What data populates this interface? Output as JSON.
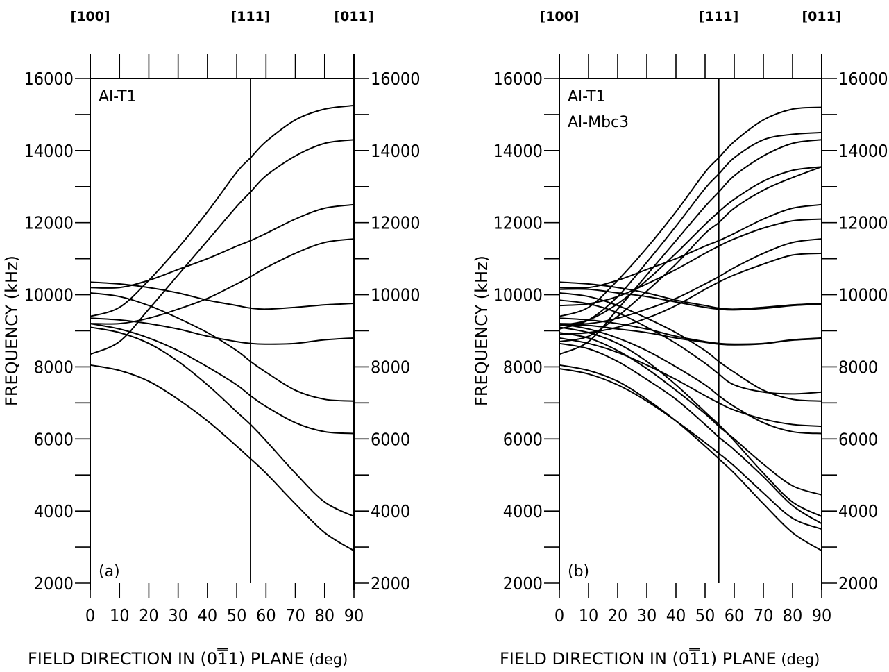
{
  "chart_data": [
    {
      "type": "line",
      "panel_label": "(a)",
      "annotation": [
        "Al-T1"
      ],
      "xlabel": "FIELD DIRECTION IN (0̅1 1) PLANE",
      "xlabel_parts": [
        "FIELD DIRECTION IN (0",
        "1",
        "1) PLANE"
      ],
      "xunit": "(deg)",
      "ylabel": "FREQUENCY (kHz)",
      "xlim": [
        0,
        90
      ],
      "ylim": [
        2000,
        16000
      ],
      "x_ticks": [
        0,
        10,
        20,
        30,
        40,
        50,
        60,
        70,
        80,
        90
      ],
      "y_ticks": [
        2000,
        4000,
        6000,
        8000,
        10000,
        12000,
        14000,
        16000
      ],
      "top_labels": [
        {
          "text": "[100]",
          "x": 0
        },
        {
          "text": "[111]",
          "x": 54.7
        },
        {
          "text": "[011]",
          "x": 90
        }
      ],
      "vline_x": 54.7,
      "x": [
        0,
        10,
        20,
        30,
        40,
        50,
        54.7,
        60,
        70,
        80,
        90
      ],
      "series": [
        {
          "values": [
            9400,
            9650,
            10400,
            11300,
            12300,
            13400,
            13800,
            14250,
            14850,
            15150,
            15250
          ]
        },
        {
          "values": [
            8350,
            8700,
            9600,
            10550,
            11500,
            12450,
            12850,
            13300,
            13850,
            14200,
            14300
          ]
        },
        {
          "values": [
            10200,
            10200,
            10400,
            10700,
            11000,
            11350,
            11500,
            11700,
            12100,
            12400,
            12500
          ]
        },
        {
          "values": [
            9200,
            9200,
            9350,
            9600,
            9900,
            10300,
            10500,
            10750,
            11150,
            11450,
            11550
          ]
        },
        {
          "values": [
            10350,
            10300,
            10200,
            10050,
            9850,
            9700,
            9630,
            9600,
            9650,
            9720,
            9760
          ]
        },
        {
          "values": [
            9350,
            9300,
            9200,
            9050,
            8850,
            8700,
            8650,
            8630,
            8650,
            8750,
            8800
          ]
        },
        {
          "values": [
            10050,
            9950,
            9700,
            9350,
            8950,
            8450,
            8150,
            7850,
            7350,
            7100,
            7050
          ]
        },
        {
          "values": [
            9200,
            9050,
            8800,
            8450,
            8000,
            7500,
            7200,
            6900,
            6450,
            6200,
            6150
          ]
        },
        {
          "values": [
            9100,
            8950,
            8650,
            8150,
            7500,
            6750,
            6400,
            5950,
            5050,
            4250,
            3850
          ]
        },
        {
          "values": [
            8050,
            7900,
            7600,
            7100,
            6500,
            5800,
            5450,
            5050,
            4200,
            3400,
            2900
          ]
        }
      ]
    },
    {
      "type": "line",
      "panel_label": "(b)",
      "annotation": [
        "Al-T1",
        "Al-Mbc3"
      ],
      "xlabel": "FIELD DIRECTION IN (0̅1 1) PLANE",
      "xlabel_parts": [
        "FIELD DIRECTION IN (0",
        "1",
        "1) PLANE"
      ],
      "xunit": "(deg)",
      "ylabel": "FREQUENCY (kHz)",
      "xlim": [
        0,
        90
      ],
      "ylim": [
        2000,
        16000
      ],
      "x_ticks": [
        0,
        10,
        20,
        30,
        40,
        50,
        60,
        70,
        80,
        90
      ],
      "y_ticks": [
        2000,
        4000,
        6000,
        8000,
        10000,
        12000,
        14000,
        16000
      ],
      "top_labels": [
        {
          "text": "[100]",
          "x": 0
        },
        {
          "text": "[111]",
          "x": 54.7
        },
        {
          "text": "[011]",
          "x": 90
        }
      ],
      "vline_x": 54.7,
      "x": [
        0,
        10,
        20,
        30,
        40,
        50,
        54.7,
        60,
        70,
        80,
        90
      ],
      "series": [
        {
          "values": [
            9400,
            9650,
            10400,
            11300,
            12300,
            13400,
            13800,
            14250,
            14850,
            15150,
            15200
          ]
        },
        {
          "values": [
            9050,
            9300,
            9950,
            10900,
            11900,
            12950,
            13350,
            13800,
            14300,
            14450,
            14500
          ]
        },
        {
          "values": [
            8350,
            8700,
            9600,
            10550,
            11500,
            12450,
            12850,
            13300,
            13850,
            14200,
            14300
          ]
        },
        {
          "values": [
            9150,
            9300,
            9750,
            10400,
            11150,
            11950,
            12300,
            12650,
            13150,
            13450,
            13550
          ]
        },
        {
          "values": [
            8700,
            8850,
            9400,
            10100,
            10850,
            11700,
            12000,
            12400,
            12900,
            13250,
            13550
          ]
        },
        {
          "values": [
            10200,
            10200,
            10400,
            10700,
            11000,
            11350,
            11500,
            11700,
            12100,
            12400,
            12500
          ]
        },
        {
          "values": [
            9700,
            9750,
            9950,
            10300,
            10700,
            11150,
            11350,
            11550,
            11850,
            12050,
            12100
          ]
        },
        {
          "values": [
            9200,
            9200,
            9350,
            9600,
            9900,
            10300,
            10500,
            10750,
            11150,
            11450,
            11550
          ]
        },
        {
          "values": [
            8900,
            8950,
            9100,
            9350,
            9700,
            10150,
            10350,
            10550,
            10850,
            11100,
            11150
          ]
        },
        {
          "values": [
            10350,
            10300,
            10200,
            10050,
            9850,
            9700,
            9630,
            9600,
            9650,
            9720,
            9760
          ]
        },
        {
          "values": [
            10150,
            10150,
            10050,
            9950,
            9800,
            9650,
            9600,
            9580,
            9620,
            9700,
            9740
          ]
        },
        {
          "values": [
            9350,
            9300,
            9200,
            9050,
            8850,
            8700,
            8650,
            8630,
            8650,
            8750,
            8800
          ]
        },
        {
          "values": [
            9150,
            9150,
            9050,
            8950,
            8800,
            8680,
            8630,
            8610,
            8640,
            8740,
            8780
          ]
        },
        {
          "values": [
            10050,
            9950,
            9700,
            9350,
            8950,
            8450,
            8150,
            7850,
            7350,
            7100,
            7050
          ]
        },
        {
          "values": [
            9850,
            9750,
            9500,
            9100,
            8650,
            8100,
            7800,
            7500,
            7300,
            7250,
            7300
          ]
        },
        {
          "values": [
            9200,
            9050,
            8800,
            8450,
            8000,
            7500,
            7200,
            6900,
            6450,
            6200,
            6150
          ]
        },
        {
          "values": [
            8800,
            8650,
            8400,
            8050,
            7650,
            7200,
            7000,
            6800,
            6550,
            6400,
            6350
          ]
        },
        {
          "values": [
            9100,
            8950,
            8650,
            8150,
            7500,
            6750,
            6400,
            5950,
            5050,
            4250,
            3850
          ]
        },
        {
          "values": [
            8950,
            8800,
            8450,
            7950,
            7350,
            6700,
            6350,
            6000,
            5300,
            4700,
            4450
          ]
        },
        {
          "values": [
            8650,
            8500,
            8150,
            7650,
            7100,
            6400,
            6050,
            5700,
            4950,
            4150,
            3650
          ]
        },
        {
          "values": [
            8050,
            7900,
            7600,
            7100,
            6500,
            5800,
            5450,
            5050,
            4200,
            3400,
            2900
          ]
        },
        {
          "values": [
            7950,
            7800,
            7500,
            7050,
            6500,
            5900,
            5600,
            5250,
            4500,
            3800,
            3500
          ]
        }
      ]
    }
  ]
}
